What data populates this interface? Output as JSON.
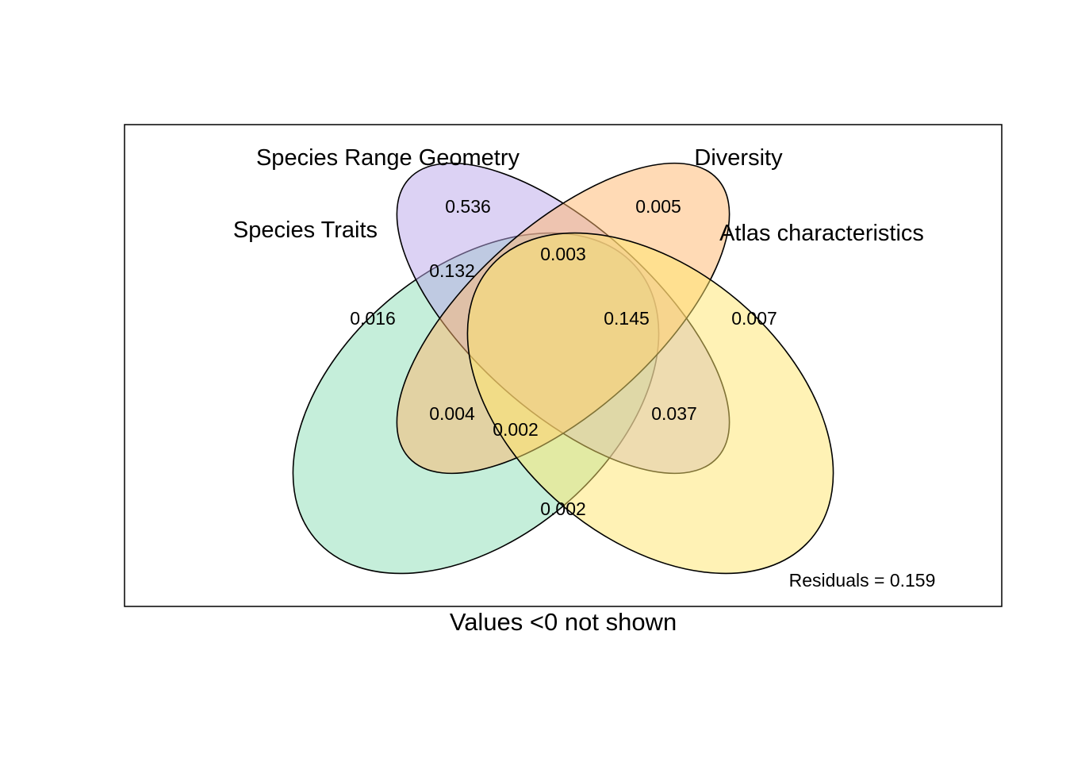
{
  "diagram": {
    "type": "venn",
    "sets": [
      {
        "id": "traits",
        "label": "Species Traits",
        "color": "#8BDDB6"
      },
      {
        "id": "range",
        "label": "Species Range Geometry",
        "color": "#B9A6EA"
      },
      {
        "id": "diversity",
        "label": "Diversity",
        "color": "#FFB66B"
      },
      {
        "id": "atlas",
        "label": "Atlas characteristics",
        "color": "#FFE56B"
      }
    ],
    "regions": [
      {
        "sets": [
          "range"
        ],
        "value": "0.536"
      },
      {
        "sets": [
          "diversity"
        ],
        "value": "0.005"
      },
      {
        "sets": [
          "range",
          "diversity"
        ],
        "value": "0.003"
      },
      {
        "sets": [
          "traits",
          "range"
        ],
        "value": "0.132"
      },
      {
        "sets": [
          "traits"
        ],
        "value": "0.016"
      },
      {
        "sets": [
          "range",
          "diversity",
          "atlas"
        ],
        "value": "0.145"
      },
      {
        "sets": [
          "atlas"
        ],
        "value": "0.007"
      },
      {
        "sets": [
          "traits",
          "range",
          "atlas"
        ],
        "value": "0.004"
      },
      {
        "sets": [
          "traits",
          "diversity",
          "atlas"
        ],
        "value": "0.002"
      },
      {
        "sets": [
          "diversity",
          "atlas"
        ],
        "value": "0.037"
      },
      {
        "sets": [
          "traits",
          "atlas"
        ],
        "value": "0.002"
      }
    ],
    "residuals": "Residuals = 0.159",
    "footnote": "Values <0 not shown"
  }
}
